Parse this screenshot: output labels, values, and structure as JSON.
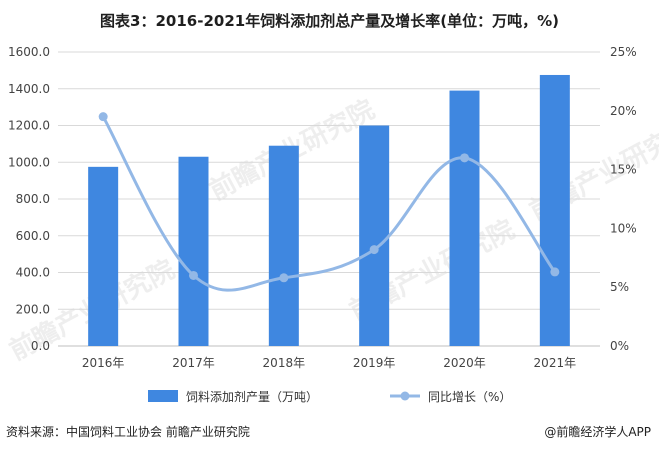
{
  "title": "图表3：2016-2021年饲料添加剂总产量及增长率(单位：万吨，%)",
  "source": "资料来源：中国饲料工业协会 前瞻产业研究院",
  "brand": "@前瞻经济学人APP",
  "watermark": "前瞻产业研究院",
  "colors": {
    "bar": "#3f87e0",
    "line": "#93b8e6",
    "grid": "#d9d9d9",
    "axis_text": "#444444"
  },
  "chart_data": {
    "type": "bar",
    "title": "图表3：2016-2021年饲料添加剂总产量及增长率(单位：万吨，%)",
    "categories": [
      "2016年",
      "2017年",
      "2018年",
      "2019年",
      "2020年",
      "2021年"
    ],
    "y_left": {
      "min": 0,
      "max": 1600,
      "ticks": [
        "0.0",
        "200.0",
        "400.0",
        "600.0",
        "800.0",
        "1000.0",
        "1200.0",
        "1400.0",
        "1600.0"
      ]
    },
    "y_right": {
      "min": 0,
      "max": 25,
      "ticks": [
        "0%",
        "5%",
        "10%",
        "15%",
        "20%",
        "25%"
      ]
    },
    "grid": true,
    "legend_placement": "bottom",
    "series": [
      {
        "name": "饲料添加剂产量（万吨）",
        "type": "bar",
        "axis": "left",
        "values": [
          975,
          1030,
          1090,
          1200,
          1390,
          1475
        ]
      },
      {
        "name": "同比增长（%）",
        "type": "line",
        "axis": "right",
        "smooth": true,
        "values": [
          19.5,
          6.0,
          5.8,
          8.2,
          16.0,
          6.3
        ]
      }
    ]
  }
}
